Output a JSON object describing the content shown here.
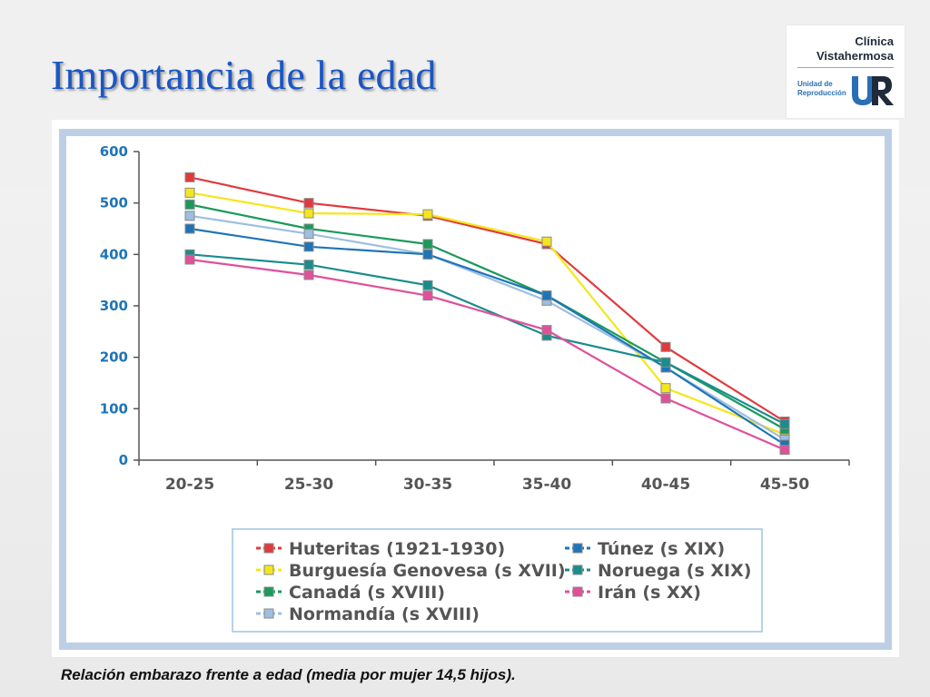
{
  "slide": {
    "title": "Importancia de la edad",
    "caption": "Relación embarazo frente a edad (media por mujer 14,5 hijos)."
  },
  "logo": {
    "name_line1": "Clínica",
    "name_line2": "Vistahermosa",
    "unit_line1": "Unidad de",
    "unit_line2": "Reproducción",
    "mark_text": "UR",
    "colors": {
      "dark": "#1f2b3a",
      "blue": "#2a6fb5"
    }
  },
  "chart_data": {
    "type": "line",
    "categories": [
      "20-25",
      "25-30",
      "30-35",
      "35-40",
      "40-45",
      "45-50"
    ],
    "ylim": [
      0,
      600
    ],
    "yticks": [
      0,
      100,
      200,
      300,
      400,
      500,
      600
    ],
    "grid": false,
    "legend_position": "bottom-center",
    "series": [
      {
        "name": "Huteritas (1921-1930)",
        "color": "#e03a3e",
        "values": [
          550,
          500,
          475,
          420,
          220,
          75
        ]
      },
      {
        "name": "Burguesía Genovesa (s XVII)",
        "color": "#f4e61e",
        "values": [
          520,
          480,
          478,
          425,
          140,
          50
        ]
      },
      {
        "name": "Canadá (s XVIII)",
        "color": "#1a9a5c",
        "values": [
          497,
          450,
          420,
          320,
          190,
          60
        ]
      },
      {
        "name": "Normandía (s XVIII)",
        "color": "#9dbfe0",
        "values": [
          475,
          440,
          400,
          310,
          180,
          40
        ]
      },
      {
        "name": "Túnez (s XIX)",
        "color": "#1f74b8",
        "values": [
          450,
          415,
          400,
          320,
          180,
          30
        ]
      },
      {
        "name": "Noruega (s XIX)",
        "color": "#1a8c8c",
        "values": [
          400,
          380,
          340,
          242,
          190,
          70
        ]
      },
      {
        "name": "Irán (s XX)",
        "color": "#e0509a",
        "values": [
          390,
          360,
          320,
          253,
          120,
          20
        ]
      }
    ]
  }
}
